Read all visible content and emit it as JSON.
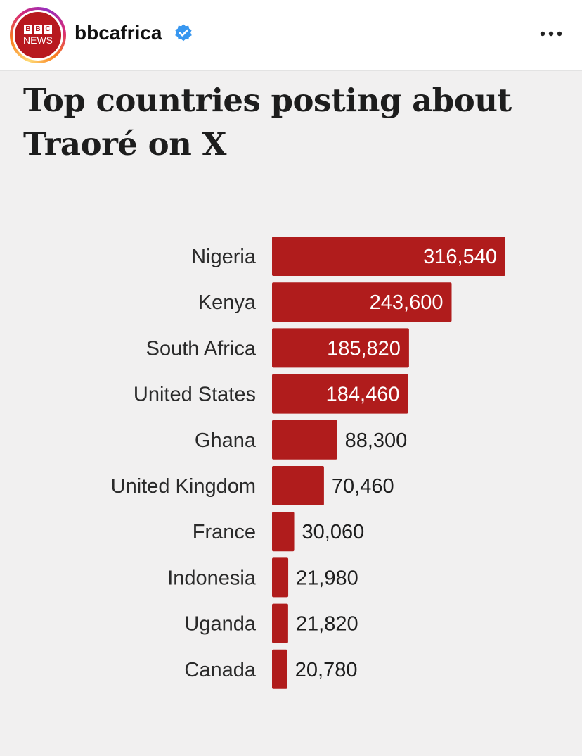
{
  "post": {
    "username": "bbcafrica",
    "avatar": {
      "brand_letters": [
        "B",
        "B",
        "C"
      ],
      "brand_word": "NEWS"
    },
    "icons": {
      "verified": "verified-badge-icon",
      "more": "more-options-icon"
    }
  },
  "colors": {
    "bar": "#b01c1c",
    "inside_label": "#ffffff",
    "outside_label": "#1d1d1d",
    "verified": "#3897f0"
  },
  "chart_data": {
    "type": "bar",
    "orientation": "horizontal",
    "title": "Top countries posting about Traoré on X",
    "xlabel": "",
    "ylabel": "",
    "grid": false,
    "legend": "none",
    "xlim": [
      0,
      316540
    ],
    "categories": [
      "Nigeria",
      "Kenya",
      "South Africa",
      "United States",
      "Ghana",
      "United Kingdom",
      "France",
      "Indonesia",
      "Uganda",
      "Canada"
    ],
    "values": [
      316540,
      243600,
      185820,
      184460,
      88300,
      70460,
      30060,
      21980,
      21820,
      20780
    ],
    "value_labels": [
      "316,540",
      "243,600",
      "185,820",
      "184,460",
      "88,300",
      "70,460",
      "30,060",
      "21,980",
      "21,820",
      "20,780"
    ]
  }
}
